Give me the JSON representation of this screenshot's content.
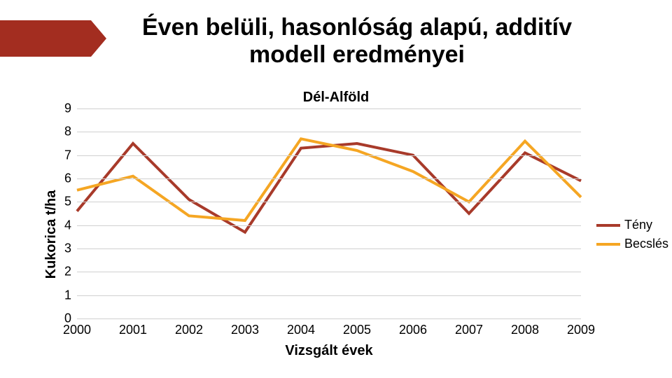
{
  "title": "Éven belüli, hasonlóság alapú, additív modell eredményei",
  "subtitle": "Dél-Alföld",
  "y_axis_label": "Kukorica  t/ha",
  "x_axis_label": "Vizsgált évek",
  "chart": {
    "type": "line",
    "xlim": [
      2000,
      2009
    ],
    "ylim": [
      0,
      9
    ],
    "ytick_step": 1,
    "y_ticks": [
      0,
      1,
      2,
      3,
      4,
      5,
      6,
      7,
      8,
      9
    ],
    "x_ticks": [
      2000,
      2001,
      2002,
      2003,
      2004,
      2005,
      2006,
      2007,
      2008,
      2009
    ],
    "grid_color": "#d0d0d0",
    "background_color": "#ffffff",
    "line_width": 4,
    "series": [
      {
        "name": "Tény",
        "color": "#a83a2a",
        "x": [
          2000,
          2001,
          2002,
          2003,
          2004,
          2005,
          2006,
          2007,
          2008,
          2009
        ],
        "y": [
          4.6,
          7.5,
          5.1,
          3.7,
          7.3,
          7.5,
          7.0,
          4.5,
          7.1,
          5.9
        ]
      },
      {
        "name": "Becslés",
        "color": "#f5a623",
        "x": [
          2000,
          2001,
          2002,
          2003,
          2004,
          2005,
          2006,
          2007,
          2008,
          2009
        ],
        "y": [
          5.5,
          6.1,
          4.4,
          4.2,
          7.7,
          7.2,
          6.3,
          5.0,
          7.6,
          5.2
        ]
      }
    ]
  },
  "legend_items": [
    {
      "label": "Tény",
      "color": "#a83a2a"
    },
    {
      "label": "Becslés",
      "color": "#f5a623"
    }
  ],
  "title_fontsize": 34,
  "axis_label_fontsize": 20,
  "tick_fontsize": 18
}
